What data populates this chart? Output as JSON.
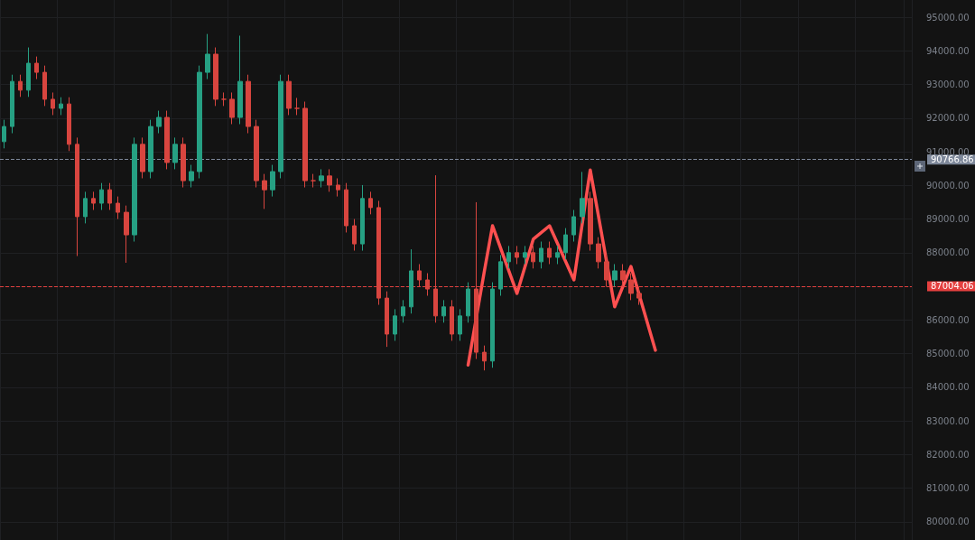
{
  "chart_data": {
    "type": "candlestick",
    "categories": [
      null,
      null,
      null,
      null,
      null,
      null,
      null,
      null,
      null,
      null,
      null,
      null,
      null,
      null,
      null,
      null,
      null,
      null,
      null,
      null,
      null,
      null,
      null,
      null,
      null,
      null,
      null,
      null,
      null,
      null,
      null,
      null,
      null,
      null,
      null,
      null,
      null,
      null,
      null,
      null,
      null,
      null,
      null,
      null,
      null,
      null,
      null,
      null,
      null,
      null,
      null,
      null,
      null,
      null,
      null,
      null,
      null,
      null,
      null,
      null,
      null,
      null,
      null,
      null,
      null,
      null,
      null,
      null,
      null,
      null,
      null,
      null,
      null,
      null,
      null,
      null,
      null,
      null,
      null,
      null,
      null,
      null,
      null,
      null,
      null,
      null,
      null,
      null,
      null,
      null,
      null,
      null,
      null,
      null,
      null,
      null,
      null,
      null,
      null,
      null,
      null,
      null,
      null,
      null,
      null,
      null,
      null,
      null,
      null,
      null,
      null,
      null
    ],
    "ohlc": [
      [
        91300,
        91950,
        91100,
        91750
      ],
      [
        91750,
        93290,
        91550,
        93090
      ],
      [
        93090,
        93290,
        92630,
        92830
      ],
      [
        92830,
        94100,
        92630,
        93630
      ],
      [
        93630,
        93830,
        93160,
        93360
      ],
      [
        93360,
        93560,
        92360,
        92560
      ],
      [
        92560,
        92760,
        92090,
        92290
      ],
      [
        92290,
        92620,
        92090,
        92420
      ],
      [
        92420,
        92620,
        91020,
        91220
      ],
      [
        91220,
        91420,
        87900,
        89070
      ],
      [
        89070,
        89810,
        88870,
        89610
      ],
      [
        89610,
        89810,
        89270,
        89470
      ],
      [
        89470,
        90070,
        89270,
        89870
      ],
      [
        89870,
        90070,
        89270,
        89470
      ],
      [
        89470,
        89670,
        89000,
        89200
      ],
      [
        89200,
        89400,
        87700,
        88530
      ],
      [
        88530,
        91420,
        88330,
        91220
      ],
      [
        91220,
        91420,
        90210,
        90410
      ],
      [
        90410,
        91950,
        90210,
        91750
      ],
      [
        91750,
        92220,
        91550,
        92020
      ],
      [
        92020,
        92220,
        90480,
        90680
      ],
      [
        90680,
        91420,
        90480,
        91220
      ],
      [
        91220,
        91420,
        89940,
        90140
      ],
      [
        90140,
        90610,
        89940,
        90410
      ],
      [
        90410,
        93560,
        90210,
        93360
      ],
      [
        93360,
        94500,
        93160,
        93900
      ],
      [
        93900,
        94100,
        92360,
        92560
      ],
      [
        92560,
        92760,
        92360,
        92560
      ],
      [
        92560,
        92760,
        91820,
        92020
      ],
      [
        92020,
        94450,
        91820,
        93090
      ],
      [
        93090,
        93290,
        91550,
        91750
      ],
      [
        91750,
        91950,
        89940,
        90140
      ],
      [
        90140,
        90340,
        89300,
        89870
      ],
      [
        89870,
        90610,
        89670,
        90410
      ],
      [
        90410,
        93290,
        90210,
        93090
      ],
      [
        93090,
        93290,
        92090,
        92290
      ],
      [
        92290,
        92600,
        92090,
        92290
      ],
      [
        92290,
        92490,
        89940,
        90140
      ],
      [
        90140,
        90340,
        89940,
        90140
      ],
      [
        90140,
        90480,
        89940,
        90280
      ],
      [
        90280,
        90480,
        89810,
        90010
      ],
      [
        90010,
        90210,
        89670,
        89870
      ],
      [
        89870,
        90070,
        88600,
        88800
      ],
      [
        88800,
        89000,
        88060,
        88260
      ],
      [
        88260,
        90010,
        88060,
        89610
      ],
      [
        89610,
        89810,
        89140,
        89340
      ],
      [
        89340,
        89540,
        86450,
        86650
      ],
      [
        86650,
        86850,
        85200,
        85580
      ],
      [
        85580,
        86320,
        85380,
        86120
      ],
      [
        86120,
        86590,
        85920,
        86390
      ],
      [
        86390,
        88100,
        86190,
        87460
      ],
      [
        87460,
        87660,
        86990,
        87190
      ],
      [
        87190,
        87390,
        86720,
        86920
      ],
      [
        86920,
        90300,
        85920,
        86120
      ],
      [
        86120,
        86590,
        85920,
        86390
      ],
      [
        86390,
        86590,
        85380,
        85580
      ],
      [
        85580,
        86320,
        85380,
        86120
      ],
      [
        86120,
        87120,
        85920,
        86920
      ],
      [
        86920,
        89500,
        84840,
        85040
      ],
      [
        85040,
        85240,
        84500,
        84780
      ],
      [
        84780,
        87120,
        84580,
        86920
      ],
      [
        86920,
        87930,
        86720,
        87730
      ],
      [
        87730,
        88200,
        87530,
        88000
      ],
      [
        88000,
        88200,
        87660,
        87860
      ],
      [
        87860,
        88200,
        87660,
        88000
      ],
      [
        88000,
        88200,
        87530,
        87730
      ],
      [
        87730,
        88330,
        87530,
        88130
      ],
      [
        88130,
        88330,
        87660,
        87860
      ],
      [
        87860,
        88200,
        87660,
        88000
      ],
      [
        88000,
        88730,
        87800,
        88530
      ],
      [
        88530,
        89270,
        88330,
        89070
      ],
      [
        89070,
        90400,
        88870,
        89610
      ],
      [
        89610,
        89810,
        88060,
        88260
      ],
      [
        88260,
        88460,
        87530,
        87730
      ],
      [
        87730,
        87930,
        86990,
        87190
      ],
      [
        87190,
        87660,
        86990,
        87460
      ],
      [
        87460,
        87660,
        86990,
        87190
      ],
      [
        87190,
        87390,
        86590,
        86790
      ],
      [
        86790,
        86990,
        86450,
        86650
      ],
      null,
      null,
      null,
      null,
      null,
      null,
      null,
      null,
      null,
      null,
      null,
      null,
      null,
      null,
      null,
      null,
      null,
      null,
      null,
      null,
      null,
      null,
      null,
      null,
      null,
      null,
      null,
      null,
      null,
      null,
      null,
      null,
      null
    ],
    "colors": [
      "#26a083",
      "#26a083",
      "#d8453f",
      "#26a083",
      "#d8453f",
      "#d8453f",
      "#d8453f",
      "#26a083",
      "#d8453f",
      "#d8453f",
      "#26a083",
      "#d8453f",
      "#26a083",
      "#d8453f",
      "#d8453f",
      "#d8453f",
      "#26a083",
      "#d8453f",
      "#26a083",
      "#26a083",
      "#d8453f",
      "#26a083",
      "#d8453f",
      "#26a083",
      "#26a083",
      "#26a083",
      "#d8453f",
      "#d8453f",
      "#d8453f",
      "#26a083",
      "#d8453f",
      "#d8453f",
      "#d8453f",
      "#26a083",
      "#26a083",
      "#d8453f",
      "#d8453f",
      "#d8453f",
      "#d8453f",
      "#26a083",
      "#d8453f",
      "#d8453f",
      "#d8453f",
      "#d8453f",
      "#26a083",
      "#d8453f",
      "#d8453f",
      "#d8453f",
      "#26a083",
      "#26a083",
      "#26a083",
      "#d8453f",
      "#d8453f",
      "#d8453f",
      "#26a083",
      "#d8453f",
      "#26a083",
      "#26a083",
      "#d8453f",
      "#d8453f",
      "#26a083",
      "#26a083",
      "#26a083",
      "#d8453f",
      "#26a083",
      "#d8453f",
      "#26a083",
      "#d8453f",
      "#26a083",
      "#26a083",
      "#26a083",
      "#26a083",
      "#d8453f",
      "#d8453f",
      "#d8453f",
      "#26a083",
      "#d8453f",
      "#d8453f",
      "#d8453f",
      null,
      null,
      null,
      null,
      null,
      null,
      null,
      null,
      null,
      null,
      null,
      null,
      null,
      null,
      null,
      null,
      null,
      null,
      null,
      null,
      null,
      null,
      null,
      null,
      null,
      null,
      null,
      null,
      null,
      null,
      null,
      null,
      null
    ],
    "series": [
      {
        "type": "line",
        "color": "#ff5050",
        "values": [
          null,
          null,
          null,
          null,
          null,
          null,
          null,
          null,
          null,
          null,
          null,
          null,
          null,
          null,
          null,
          null,
          null,
          null,
          null,
          null,
          null,
          null,
          null,
          null,
          null,
          null,
          null,
          null,
          null,
          null,
          null,
          null,
          null,
          null,
          null,
          null,
          null,
          null,
          null,
          null,
          null,
          null,
          null,
          null,
          null,
          null,
          null,
          null,
          null,
          null,
          null,
          null,
          null,
          null,
          null,
          null,
          null,
          84660,
          null,
          87460,
          88800,
          null,
          null,
          86790,
          null,
          88400,
          null,
          88800,
          null,
          null,
          87190,
          null,
          90460,
          null,
          null,
          86390,
          null,
          87590,
          null,
          null,
          85100,
          null,
          null,
          null,
          null,
          null,
          null,
          null,
          null,
          null,
          null,
          null,
          null,
          null,
          null,
          null,
          null,
          null,
          null,
          null,
          null,
          null,
          null,
          null,
          null,
          null,
          null,
          null,
          null,
          null,
          null,
          null
        ]
      }
    ],
    "ylim": [
      79460,
      95510
    ],
    "yticks": [
      {
        "value": 80000,
        "label": "80000.00"
      },
      {
        "value": 81000,
        "label": "81000.00"
      },
      {
        "value": 82000,
        "label": "82000.00"
      },
      {
        "value": 83000,
        "label": "83000.00"
      },
      {
        "value": 84000,
        "label": "84000.00"
      },
      {
        "value": 85000,
        "label": "85000.00"
      },
      {
        "value": 86000,
        "label": "86000.00"
      },
      {
        "value": 87000,
        "label": null
      },
      {
        "value": 88000,
        "label": "88000.00"
      },
      {
        "value": 89000,
        "label": "89000.00"
      },
      {
        "value": 90000,
        "label": "90000.00"
      },
      {
        "value": 91000,
        "label": "91000.00"
      },
      {
        "value": 92000,
        "label": "92000.00"
      },
      {
        "value": 93000,
        "label": "93000.00"
      },
      {
        "value": 94000,
        "label": "94000.00"
      },
      {
        "value": 95000,
        "label": "95000.00"
      }
    ],
    "ref_lines": [
      {
        "axis": "y",
        "value": 90766.86,
        "label": "90766.86",
        "color": "#7d8799",
        "line_style": "dashed"
      },
      {
        "axis": "y",
        "value": 87004.06,
        "label": "87004.06",
        "color": "#e5403f",
        "line_style": "dashed"
      }
    ],
    "grid": true,
    "tick_labels": "y",
    "marker": "none",
    "line_style": "solid"
  }
}
